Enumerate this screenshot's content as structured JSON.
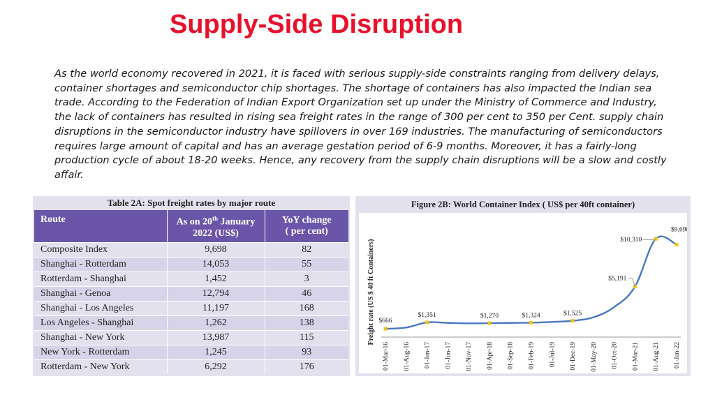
{
  "slide": {
    "title": "Supply-Side Disruption",
    "paragraph": "As the world economy recovered in 2021, it is faced with serious supply-side constraints ranging from delivery delays, container shortages and semiconductor chip shortages. The shortage of containers has also impacted the Indian sea trade. According to the Federation of Indian Export Organization set up under the Ministry of Commerce and Industry, the lack of containers has resulted in rising sea freight rates in the range of 300 per cent to 350 per Cent. supply chain disruptions in the semiconductor industry have spillovers in over 169 industries. The manufacturing of semiconductors requires large amount of capital and has an average gestation period of 6-9 months. Moreover, it has a fairly-long production cycle of about 18-20 weeks. Hence, any recovery from the supply chain disruptions will be a slow and costly affair."
  },
  "table": {
    "caption": "Table 2A: Spot freight rates by major route",
    "headers": {
      "route": "Route",
      "rate_line1_pre": "As on 20",
      "rate_line1_sup": "th",
      "rate_line1_post": " January",
      "rate_line2": "2022 (US$)",
      "yoy_line1": "YoY change",
      "yoy_line2": "( per cent)"
    },
    "rows": [
      {
        "route": "Composite Index",
        "rate": "9,698",
        "yoy": "82"
      },
      {
        "route": "Shanghai - Rotterdam",
        "rate": "14,053",
        "yoy": "55"
      },
      {
        "route": "Rotterdam - Shanghai",
        "rate": "1,452",
        "yoy": "3"
      },
      {
        "route": "Shanghai - Genoa",
        "rate": "12,794",
        "yoy": "46"
      },
      {
        "route": "Shanghai - Los Angeles",
        "rate": "11,197",
        "yoy": "168"
      },
      {
        "route": "Los Angeles - Shanghai",
        "rate": "1,262",
        "yoy": "138"
      },
      {
        "route": "Shanghai - New York",
        "rate": "13,987",
        "yoy": "115"
      },
      {
        "route": "New York - Rotterdam",
        "rate": "1,245",
        "yoy": "93"
      },
      {
        "route": "Rotterdam - New York",
        "rate": "6,292",
        "yoy": "176"
      }
    ]
  },
  "chart_data": {
    "type": "line",
    "title": "Figure 2B: World Container Index ( US$ per 40ft container)",
    "ylabel": "Freight rate (US $ 40 ft Containers)",
    "xlabel": "",
    "categories": [
      "01-Mar-16",
      "01-Aug-16",
      "01-Jan-17",
      "01-Jun-17",
      "01-Nov-17",
      "01-Apr-18",
      "01-Sep-18",
      "01-Feb-19",
      "01-Jul-19",
      "01-Dec-19",
      "01-May-20",
      "01-Oct-20",
      "01-Mar-21",
      "01-Aug-21",
      "01-Jan-22"
    ],
    "series": [
      {
        "values": [
          666,
          800,
          1351,
          1300,
          1250,
          1270,
          1300,
          1324,
          1400,
          1525,
          1900,
          3000,
          5191,
          10310,
          9698
        ]
      }
    ],
    "data_labels": [
      {
        "index": 0,
        "label": "$666"
      },
      {
        "index": 2,
        "label": "$1,351"
      },
      {
        "index": 5,
        "label": "$1,270"
      },
      {
        "index": 7,
        "label": "$1,324"
      },
      {
        "index": 9,
        "label": "$1,525"
      },
      {
        "index": 12,
        "label": "$5,191"
      },
      {
        "index": 13,
        "label": "$10,310"
      },
      {
        "index": 14,
        "label": "$9,698"
      }
    ],
    "ylim": [
      0,
      11000
    ],
    "grid": false,
    "line_color": "#4a78c2",
    "marker_color": "#f0c419"
  },
  "colors": {
    "title": "#e8112d",
    "table_header": "#6a56a8",
    "panel_bg": "#e4e1ef"
  }
}
